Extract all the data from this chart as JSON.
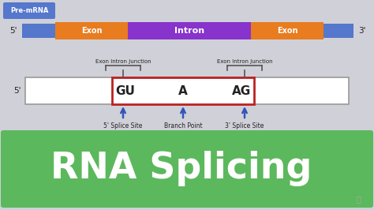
{
  "bg_color": "#d0d0d8",
  "pre_mrna_label": "Pre-mRNA",
  "pre_mrna_box_color": "#5577cc",
  "strand_blue_color": "#5577cc",
  "exon_color": "#e87c1e",
  "intron_color": "#8833cc",
  "exon_label": "Exon",
  "intron_label": "Intron",
  "label_5prime_top": "5'",
  "label_3prime_top": "3'",
  "label_5prime_bot": "5'",
  "five_prime_splice": "5' Splice Site",
  "branch_point": "Branch Point",
  "three_prime_splice": "3' Splice Site",
  "gu_label": "GU",
  "a_label": "A",
  "ag_label": "AG",
  "exon_intron_junction": "Exon Intron Junction",
  "red_box_color": "#bb2222",
  "white_box_color": "#ffffff",
  "outer_box_edge": "#999999",
  "arrow_color": "#3355bb",
  "bracket_color": "#555555",
  "green_banner_color": "#5cb85c",
  "rna_splicing_text": "RNA Splicing",
  "rna_splicing_color": "#ffffff",
  "text_dark": "#222222",
  "text_mid": "#444444"
}
